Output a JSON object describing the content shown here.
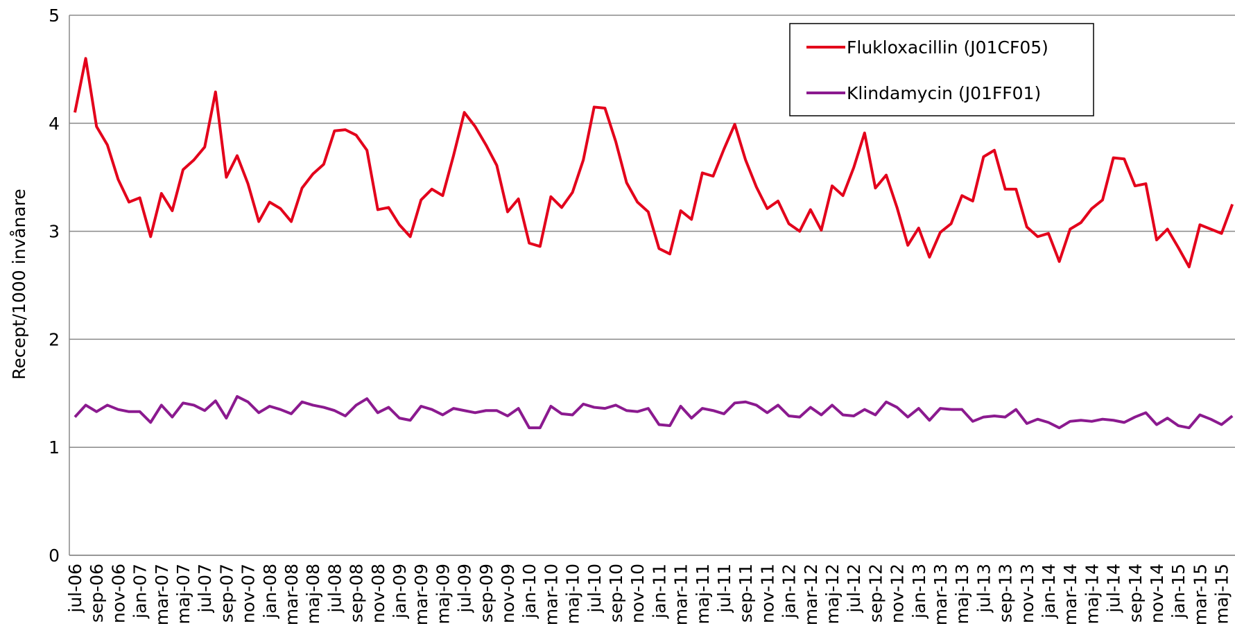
{
  "chart_data": {
    "type": "line",
    "y_label": "Recept/1000 invånare",
    "categories": [
      "jul-06",
      null,
      "sep-06",
      null,
      "nov-06",
      null,
      "jan-07",
      null,
      "mar-07",
      null,
      "maj-07",
      null,
      "jul-07",
      null,
      "sep-07",
      null,
      "nov-07",
      null,
      "jan-08",
      null,
      "mar-08",
      null,
      "maj-08",
      null,
      "jul-08",
      null,
      "sep-08",
      null,
      "nov-08",
      null,
      "jan-09",
      null,
      "mar-09",
      null,
      "maj-09",
      null,
      "jul-09",
      null,
      "sep-09",
      null,
      "nov-09",
      null,
      "jan-10",
      null,
      "mar-10",
      null,
      "maj-10",
      null,
      "jul-10",
      null,
      "sep-10",
      null,
      "nov-10",
      null,
      "jan-11",
      null,
      "mar-11",
      null,
      "maj-11",
      null,
      "jul-11",
      null,
      "sep-11",
      null,
      "nov-11",
      null,
      "jan-12",
      null,
      "mar-12",
      null,
      "maj-12",
      null,
      "jul-12",
      null,
      "sep-12",
      null,
      "nov-12",
      null,
      "jan-13",
      null,
      "mar-13",
      null,
      "maj-13",
      null,
      "jul-13",
      null,
      "sep-13",
      null,
      "nov-13",
      null,
      "jan-14",
      null,
      "mar-14",
      null,
      "maj-14",
      null,
      "jul-14",
      null,
      "sep-14",
      null,
      "nov-14",
      null,
      "jan-15",
      null,
      "mar-15",
      null,
      "maj-15",
      null
    ],
    "series": [
      {
        "name": "Flukloxacillin (J01CF05)",
        "color": "#e3001b",
        "values": [
          4.1,
          4.6,
          3.97,
          3.8,
          3.48,
          3.27,
          3.31,
          2.95,
          3.35,
          3.19,
          3.57,
          3.66,
          3.78,
          4.29,
          3.5,
          3.7,
          3.44,
          3.09,
          3.27,
          3.21,
          3.09,
          3.4,
          3.53,
          3.62,
          3.93,
          3.94,
          3.89,
          3.75,
          3.2,
          3.22,
          3.06,
          2.95,
          3.29,
          3.39,
          3.33,
          3.7,
          4.1,
          3.97,
          3.8,
          3.61,
          3.18,
          3.3,
          2.89,
          2.86,
          3.32,
          3.22,
          3.36,
          3.66,
          4.15,
          4.14,
          3.83,
          3.45,
          3.27,
          3.18,
          2.84,
          2.79,
          3.19,
          3.11,
          3.54,
          3.51,
          3.76,
          3.99,
          3.66,
          3.41,
          3.21,
          3.28,
          3.07,
          3.0,
          3.2,
          3.01,
          3.42,
          3.33,
          3.59,
          3.91,
          3.4,
          3.52,
          3.22,
          2.87,
          3.03,
          2.76,
          2.99,
          3.07,
          3.33,
          3.28,
          3.69,
          3.75,
          3.39,
          3.39,
          3.04,
          2.95,
          2.98,
          2.72,
          3.02,
          3.08,
          3.21,
          3.29,
          3.68,
          3.67,
          3.42,
          3.44,
          2.92,
          3.02,
          2.85,
          2.67,
          3.06,
          3.02,
          2.98,
          3.25
        ]
      },
      {
        "name": "Klindamycin (J01FF01)",
        "color": "#8b1a8f",
        "values": [
          1.28,
          1.39,
          1.33,
          1.39,
          1.35,
          1.33,
          1.33,
          1.23,
          1.39,
          1.28,
          1.41,
          1.39,
          1.34,
          1.43,
          1.27,
          1.47,
          1.42,
          1.32,
          1.38,
          1.35,
          1.31,
          1.42,
          1.39,
          1.37,
          1.34,
          1.29,
          1.39,
          1.45,
          1.32,
          1.37,
          1.27,
          1.25,
          1.38,
          1.35,
          1.3,
          1.36,
          1.34,
          1.32,
          1.34,
          1.34,
          1.29,
          1.36,
          1.18,
          1.18,
          1.38,
          1.31,
          1.3,
          1.4,
          1.37,
          1.36,
          1.39,
          1.34,
          1.33,
          1.36,
          1.21,
          1.2,
          1.38,
          1.27,
          1.36,
          1.34,
          1.31,
          1.41,
          1.42,
          1.39,
          1.32,
          1.39,
          1.29,
          1.28,
          1.37,
          1.3,
          1.39,
          1.3,
          1.29,
          1.35,
          1.3,
          1.42,
          1.37,
          1.28,
          1.36,
          1.25,
          1.36,
          1.35,
          1.35,
          1.24,
          1.28,
          1.29,
          1.28,
          1.35,
          1.22,
          1.26,
          1.23,
          1.18,
          1.24,
          1.25,
          1.24,
          1.26,
          1.25,
          1.23,
          1.28,
          1.32,
          1.21,
          1.27,
          1.2,
          1.18,
          1.3,
          1.26,
          1.21,
          1.29
        ]
      }
    ],
    "ylim": [
      0,
      5
    ],
    "yticks": [
      0,
      1,
      2,
      3,
      4,
      5
    ],
    "grid": true,
    "legend": "top-right"
  }
}
